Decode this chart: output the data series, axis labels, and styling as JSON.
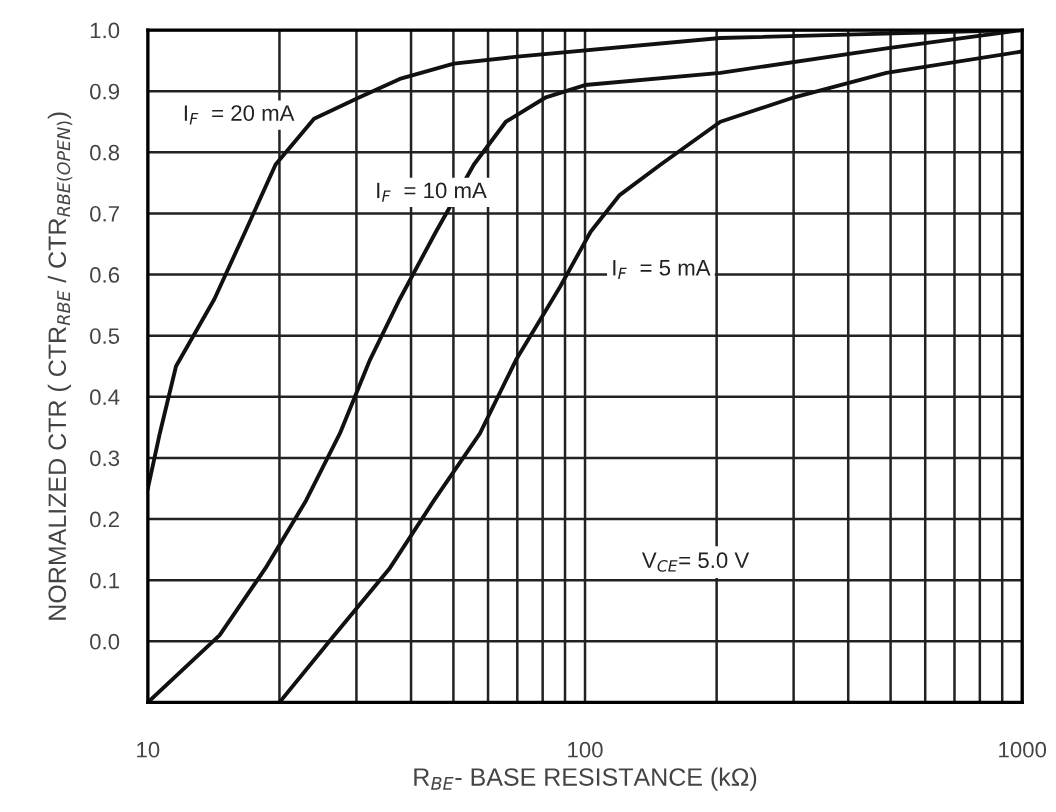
{
  "chart_data": {
    "type": "line",
    "xlabel": "R$_{BE}$- BASE RESISTANCE (kΩ)",
    "ylabel": "NORMALIZED CTR ( CTR$_{RBE}$ / CTR$_{RBE(OPEN)}$)",
    "annotations": [
      "V$_{CE}$= 5.0 V"
    ],
    "log": "x",
    "grid": true,
    "marker": "none",
    "line_style": "solid",
    "legend": false,
    "xlim": [
      10,
      1000
    ],
    "xticks": [
      10,
      {
        "value": 20,
        "label": null
      },
      {
        "value": 30,
        "label": null
      },
      {
        "value": 40,
        "label": null
      },
      {
        "value": 50,
        "label": null
      },
      {
        "value": 60,
        "label": null
      },
      {
        "value": 70,
        "label": null
      },
      {
        "value": 80,
        "label": null
      },
      {
        "value": 90,
        "label": null
      },
      100,
      {
        "value": 200,
        "label": null
      },
      {
        "value": 300,
        "label": null
      },
      {
        "value": 400,
        "label": null
      },
      {
        "value": 500,
        "label": null
      },
      {
        "value": 600,
        "label": null
      },
      {
        "value": 700,
        "label": null
      },
      {
        "value": 800,
        "label": null
      },
      {
        "value": 900,
        "label": null
      },
      1000
    ],
    "ylim": [
      -0.1,
      1.0
    ],
    "yticks": [
      {
        "value": 0,
        "label": "0.0"
      },
      0.1,
      0.2,
      0.3,
      0.4,
      0.5,
      0.6,
      0.7,
      0.8,
      0.9,
      {
        "value": 1,
        "label": "1.0"
      }
    ],
    "series": [
      {
        "name": "I$_{F}$  = 20 mA",
        "color": "#111111",
        "x": [
          10,
          10.65,
          11.6,
          14.2,
          16.7,
          19.6,
          24.0,
          30.5,
          37.7,
          50.1,
          71,
          204,
          1000
        ],
        "values": [
          0.25,
          0.34,
          0.45,
          0.56,
          0.67,
          0.78,
          0.855,
          0.89,
          0.92,
          0.945,
          0.957,
          0.987,
          1.0
        ]
      },
      {
        "name": "I$_{F}$  = 10 mA",
        "color": "#111111",
        "x": [
          10,
          14.6,
          18.6,
          23.0,
          27.5,
          32.2,
          37.7,
          45.6,
          55.7,
          65.9,
          81.4,
          100,
          204,
          489,
          1000
        ],
        "values": [
          -0.1,
          0.01,
          0.12,
          0.23,
          0.34,
          0.46,
          0.56,
          0.67,
          0.78,
          0.85,
          0.89,
          0.91,
          0.93,
          0.97,
          1.0
        ]
      },
      {
        "name": "I$_{F}$  = 5 mA",
        "color": "#111111",
        "x": [
          20,
          26.7,
          35.8,
          45.1,
          57.5,
          69.5,
          87.7,
          103,
          120,
          149,
          204,
          301,
          489,
          1000
        ],
        "values": [
          -0.1,
          0.01,
          0.12,
          0.23,
          0.34,
          0.46,
          0.58,
          0.67,
          0.73,
          0.78,
          0.85,
          0.89,
          0.93,
          0.965
        ]
      }
    ]
  }
}
